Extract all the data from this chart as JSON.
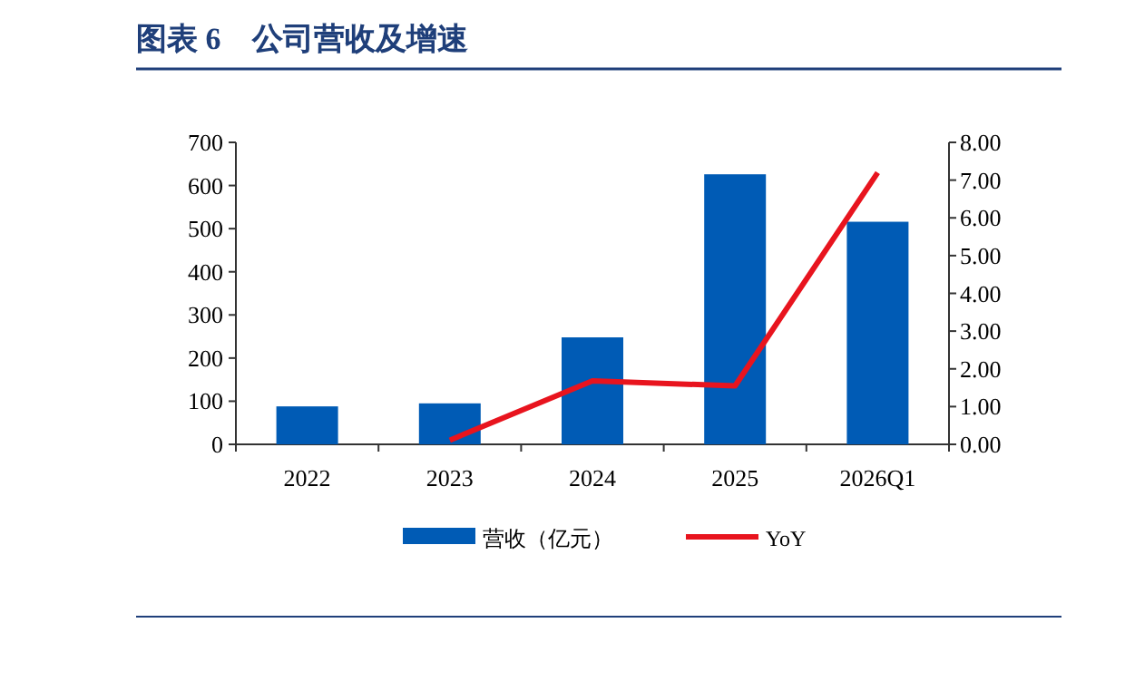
{
  "chart_data": {
    "type": "bar",
    "title": "图表 6　公司营收及增速",
    "categories": [
      "2022",
      "2023",
      "2024",
      "2025",
      "2026Q1"
    ],
    "series": [
      {
        "name": "营收（亿元）",
        "color": "#005bb5",
        "values": [
          88,
          95,
          248,
          626,
          516
        ]
      },
      {
        "name": "YoY",
        "type": "line",
        "axis": "y2",
        "color": "#e8141e",
        "values": [
          null,
          0.11,
          1.68,
          1.55,
          7.2
        ]
      }
    ],
    "ylim": [
      0,
      700
    ],
    "yticks": [
      0,
      100,
      200,
      300,
      400,
      500,
      600,
      700
    ],
    "y2lim": [
      0,
      8
    ],
    "y2ticks": [
      {
        "value": 0,
        "label": "0.00"
      },
      {
        "value": 1,
        "label": "1.00"
      },
      {
        "value": 2,
        "label": "2.00"
      },
      {
        "value": 3,
        "label": "3.00"
      },
      {
        "value": 4,
        "label": "4.00"
      },
      {
        "value": 5,
        "label": "5.00"
      },
      {
        "value": 6,
        "label": "6.00"
      },
      {
        "value": 7,
        "label": "7.00"
      },
      {
        "value": 8,
        "label": "8.00"
      }
    ],
    "legend": "bottom",
    "grid": false
  }
}
